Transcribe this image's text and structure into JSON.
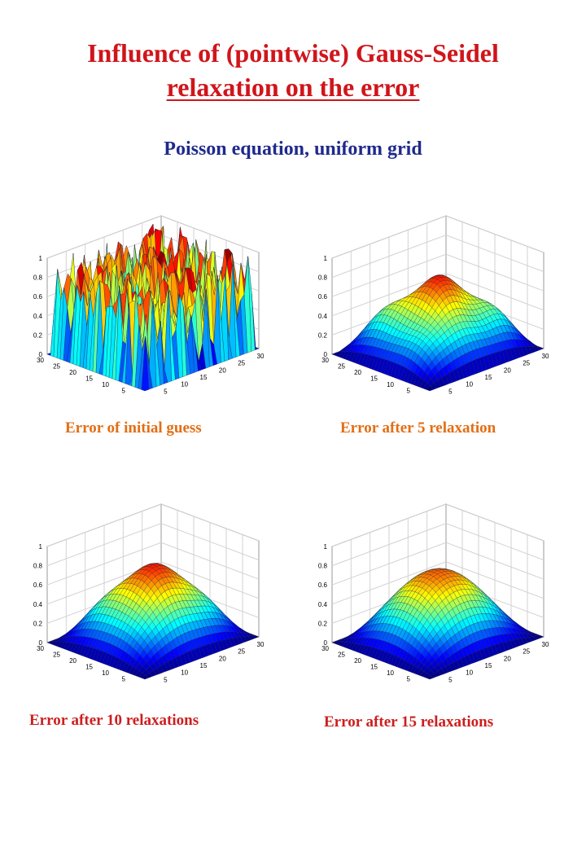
{
  "title": {
    "line1": "Influence of (pointwise) Gauss-Seidel",
    "line2": "relaxation on the error"
  },
  "subtitle": "Poisson equation, uniform grid",
  "plots": [
    {
      "caption": "Error of initial guess",
      "kind": "noise"
    },
    {
      "caption": "Error after 5 relaxation",
      "kind": "bump5"
    },
    {
      "caption": "Error after 10 relaxations",
      "kind": "bump10"
    },
    {
      "caption": "Error after 15 relaxations",
      "kind": "bump15"
    }
  ],
  "axes": {
    "z_ticks": [
      "0",
      "0.2",
      "0.4",
      "0.6",
      "0.8",
      "1"
    ],
    "left_ticks": [
      "30",
      "25",
      "20",
      "15",
      "10",
      "5"
    ],
    "right_ticks": [
      "5",
      "10",
      "15",
      "20",
      "25",
      "30"
    ]
  },
  "colors": {
    "title": "#d0151b",
    "subtitle": "#1f2a8c",
    "caption_orange": "#e36e14",
    "caption_red": "#cc1f1f"
  }
}
